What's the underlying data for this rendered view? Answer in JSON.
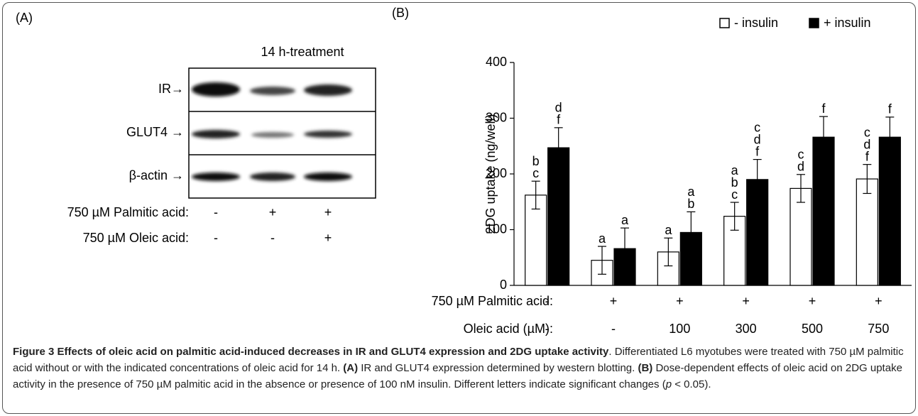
{
  "panel_a": {
    "label": "(A)",
    "header": "14 h-treatment",
    "bands": [
      "IR→",
      "GLUT4 →",
      "β-actin →"
    ],
    "conditions": [
      {
        "label": "750 µM Palmitic acid:",
        "values": [
          "-",
          "+",
          "+"
        ]
      },
      {
        "label": "750 µM Oleic acid:",
        "values": [
          "-",
          "-",
          "+"
        ]
      }
    ]
  },
  "chart_data": {
    "type": "bar",
    "panel_label": "(B)",
    "y_label": "2DG uptake (ng/well)",
    "ylim": [
      0,
      400
    ],
    "yticks": [
      0,
      100,
      200,
      300,
      400
    ],
    "condition_label": "750 µM Palmitic acid:",
    "condition_values": [
      "-",
      "+",
      "+",
      "+",
      "+",
      "+"
    ],
    "categories_label": "Oleic acid (µM):",
    "categories": [
      "-",
      "-",
      "100",
      "300",
      "500",
      "750"
    ],
    "legend": "top-right",
    "series": [
      {
        "name": "- insulin",
        "color": "#ffffff",
        "values": [
          162,
          45,
          60,
          124,
          174,
          191
        ],
        "errors": [
          25,
          25,
          25,
          25,
          25,
          26
        ],
        "letters": [
          [
            "b",
            "c"
          ],
          [
            "a"
          ],
          [
            "a"
          ],
          [
            "a",
            "b",
            "c"
          ],
          [
            "c",
            "d"
          ],
          [
            "c",
            "d",
            "f"
          ]
        ]
      },
      {
        "name": "+ insulin",
        "color": "#000000",
        "values": [
          247,
          66,
          95,
          190,
          266,
          266
        ],
        "errors": [
          36,
          37,
          37,
          36,
          37,
          36
        ],
        "letters": [
          [
            "d",
            "f"
          ],
          [
            "a"
          ],
          [
            "a",
            "b"
          ],
          [
            "c",
            "d",
            "f"
          ],
          [
            "f"
          ],
          [
            "f"
          ]
        ]
      }
    ]
  },
  "caption": {
    "title": "Figure 3 Effects of oleic acid on palmitic acid-induced decreases in IR and GLUT4 expression and 2DG uptake activity",
    "text_1": ". Differentiated L6 myotubes were treated with 750 µM palmitic acid without or with the indicated concentrations of oleic acid for 14 h. ",
    "label_a": "(A)",
    "text_2": " IR and GLUT4 expression determined by western blotting. ",
    "label_b": "(B)",
    "text_3": " Dose-dependent effects of oleic acid on 2DG uptake activity in the presence of 750 µM palmitic acid in the absence or presence of 100 nM insulin. Different letters indicate significant changes (",
    "p": "p",
    "text_4": " < 0.05)."
  }
}
